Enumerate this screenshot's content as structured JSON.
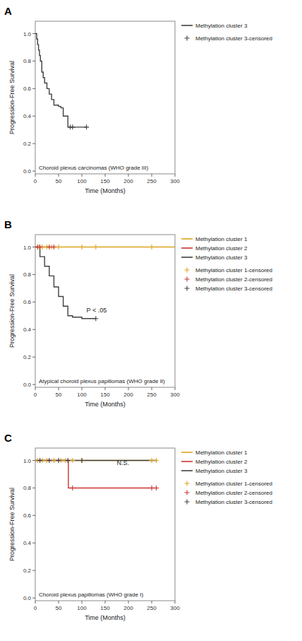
{
  "chart_data": [
    {
      "type": "line",
      "title": "A",
      "subtitle": "Choroid plexus carcinomas (WHO grade III)",
      "x_label": "Time (Months)",
      "y_label": "Progression-Free Survival",
      "xlim": [
        0,
        300
      ],
      "ylim": [
        -0.02,
        1.09
      ],
      "xticks": [
        0,
        50,
        100,
        150,
        200,
        250,
        300
      ],
      "yticks": [
        {
          "value": 0,
          "label": "0.0"
        },
        0.2,
        0.4,
        0.6,
        0.8,
        {
          "value": 1,
          "label": "1.0"
        }
      ],
      "grid": false,
      "legend": "right",
      "series": [
        {
          "name": "Methylation cluster 3",
          "color": "#404040",
          "type": "step",
          "x": [
            0,
            3,
            5,
            7,
            9,
            11,
            14,
            17,
            20,
            25,
            30,
            35,
            40,
            50,
            55,
            60,
            70,
            75,
            80,
            110
          ],
          "values": [
            1.0,
            0.96,
            0.92,
            0.88,
            0.84,
            0.8,
            0.72,
            0.68,
            0.64,
            0.6,
            0.56,
            0.52,
            0.48,
            0.47,
            0.46,
            0.4,
            0.32,
            0.32,
            0.32,
            0.32
          ]
        },
        {
          "name": "Methylation cluster 3-censored",
          "color": "#404040",
          "type": "scatter",
          "marker": "plus",
          "x": [
            75,
            80,
            110
          ],
          "values": [
            0.32,
            0.32,
            0.32
          ]
        }
      ]
    },
    {
      "type": "line",
      "title": "B",
      "subtitle": "Atypical choroid plexus papillomas (WHO grade II)",
      "x_label": "Time (Months)",
      "y_label": "Progression-Free Survival",
      "xlim": [
        0,
        300
      ],
      "ylim": [
        -0.02,
        1.09
      ],
      "xticks": [
        0,
        50,
        100,
        150,
        200,
        250,
        300
      ],
      "yticks": [
        {
          "value": 0,
          "label": "0.0"
        },
        0.2,
        0.4,
        0.6,
        0.8,
        {
          "value": 1,
          "label": "1.0"
        }
      ],
      "grid": false,
      "legend": "right",
      "annotations": [
        {
          "text": "P < .05",
          "x": 110,
          "y": 0.5
        }
      ],
      "series": [
        {
          "name": "Methylation cluster 1",
          "color": "#DAA520",
          "type": "step",
          "x": [
            0,
            30,
            50,
            100,
            130,
            250,
            300
          ],
          "values": [
            1.0,
            1.0,
            1.0,
            1.0,
            1.0,
            1.0,
            1.0
          ]
        },
        {
          "name": "Methylation cluster 2",
          "color": "#CC3333",
          "type": "step",
          "x": [
            0,
            5,
            10,
            30,
            40
          ],
          "values": [
            1.0,
            1.0,
            1.0,
            1.0,
            1.0
          ]
        },
        {
          "name": "Methylation cluster 3",
          "color": "#404040",
          "type": "step",
          "x": [
            0,
            10,
            20,
            30,
            40,
            50,
            60,
            70,
            80,
            90,
            100,
            110,
            120,
            130
          ],
          "values": [
            1.0,
            0.93,
            0.86,
            0.79,
            0.71,
            0.64,
            0.57,
            0.5,
            0.49,
            0.49,
            0.48,
            0.48,
            0.48,
            0.48
          ]
        },
        {
          "name": "Methylation cluster 1-censored",
          "color": "#DAA520",
          "type": "scatter",
          "marker": "plus",
          "x": [
            8,
            15,
            25,
            35,
            50,
            100,
            130,
            250
          ],
          "values": [
            1.0,
            1.0,
            1.0,
            1.0,
            1.0,
            1.0,
            1.0,
            1.0
          ]
        },
        {
          "name": "Methylation cluster 2-censored",
          "color": "#CC3333",
          "type": "scatter",
          "marker": "plus",
          "x": [
            5,
            10,
            30,
            40
          ],
          "values": [
            1.0,
            1.0,
            1.0,
            1.0
          ]
        },
        {
          "name": "Methylation cluster 3-censored",
          "color": "#404040",
          "type": "scatter",
          "marker": "plus",
          "x": [
            130
          ],
          "values": [
            0.48
          ]
        }
      ]
    },
    {
      "type": "line",
      "title": "C",
      "subtitle": "Choroid plexus papillomas (WHO grade I)",
      "x_label": "Time (Months)",
      "y_label": "Progression-Free Survival",
      "xlim": [
        0,
        300
      ],
      "ylim": [
        -0.02,
        1.09
      ],
      "xticks": [
        0,
        50,
        100,
        150,
        200,
        250,
        300
      ],
      "yticks": [
        {
          "value": 0,
          "label": "0.0"
        },
        0.2,
        0.4,
        0.6,
        0.8,
        {
          "value": 1,
          "label": "1.0"
        }
      ],
      "grid": false,
      "legend": "right",
      "annotations": [
        {
          "text": "N.S.",
          "x": 175,
          "y": 0.94
        }
      ],
      "series": [
        {
          "name": "Methylation cluster 1",
          "color": "#DAA520",
          "type": "step",
          "x": [
            0,
            50,
            100,
            250,
            260
          ],
          "values": [
            1.0,
            1.0,
            1.0,
            1.0,
            1.0
          ]
        },
        {
          "name": "Methylation cluster 2",
          "color": "#CC3333",
          "type": "step",
          "x": [
            0,
            70,
            71,
            250,
            260
          ],
          "values": [
            1.0,
            1.0,
            0.8,
            0.8,
            0.8
          ]
        },
        {
          "name": "Methylation cluster 3",
          "color": "#404040",
          "type": "step",
          "x": [
            0,
            50,
            100,
            250,
            260
          ],
          "values": [
            1.0,
            1.0,
            1.0,
            1.0,
            1.0
          ]
        },
        {
          "name": "Methylation cluster 1-censored",
          "color": "#DAA520",
          "type": "scatter",
          "marker": "plus",
          "x": [
            5,
            15,
            25,
            40,
            55,
            65,
            80,
            100,
            250,
            260
          ],
          "values": [
            1.0,
            1.0,
            1.0,
            1.0,
            1.0,
            1.0,
            1.0,
            1.0,
            1.0,
            1.0
          ]
        },
        {
          "name": "Methylation cluster 2-censored",
          "color": "#CC3333",
          "type": "scatter",
          "marker": "plus",
          "x": [
            80,
            250,
            260
          ],
          "values": [
            0.8,
            0.8,
            0.8
          ]
        },
        {
          "name": "Methylation cluster 3-censored",
          "color": "#404040",
          "type": "scatter",
          "marker": "plus",
          "x": [
            10,
            30,
            50,
            70,
            100
          ],
          "values": [
            1.0,
            1.0,
            1.0,
            1.0,
            1.0
          ]
        }
      ]
    }
  ]
}
